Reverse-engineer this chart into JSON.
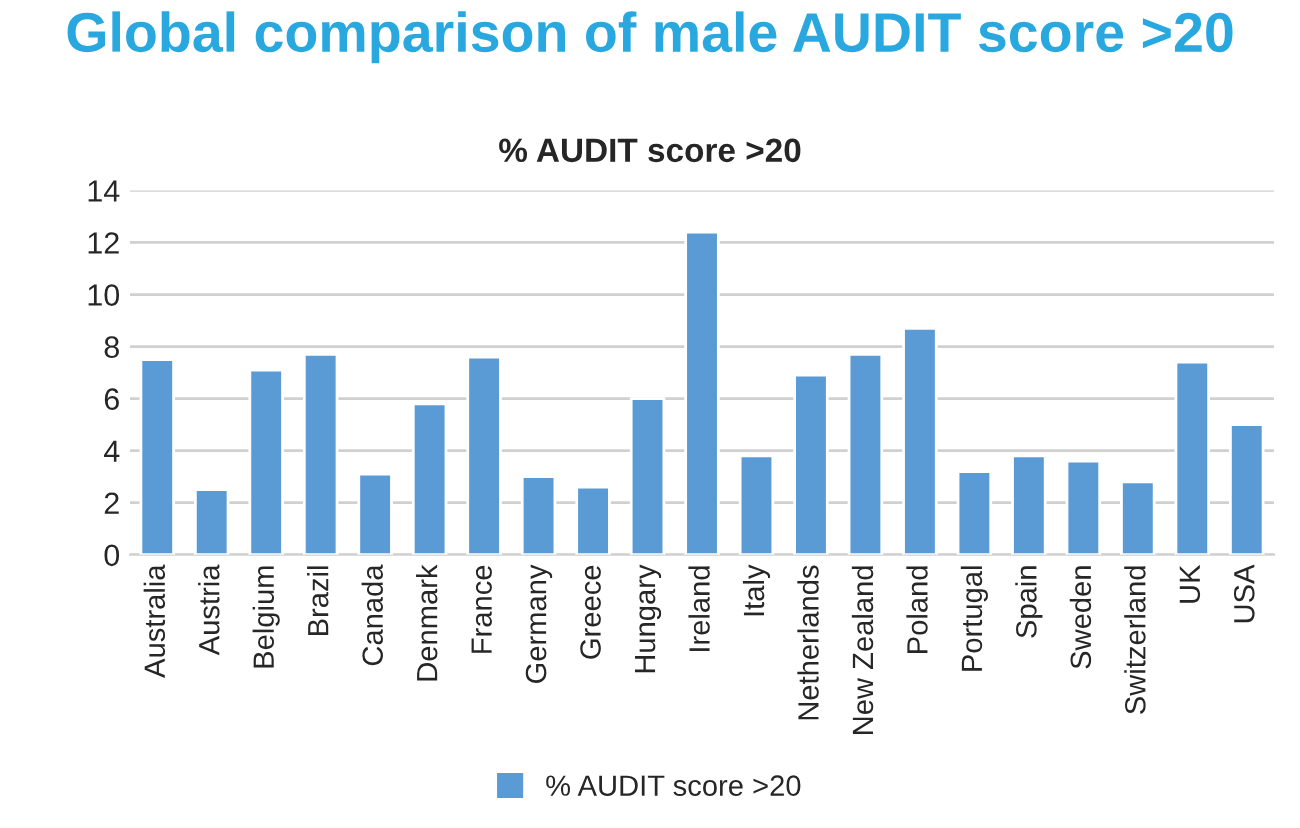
{
  "chart_data": {
    "type": "bar",
    "title": "Global comparison of male AUDIT score >20",
    "subtitle": "% AUDIT score >20",
    "categories": [
      "Australia",
      "Austria",
      "Belgium",
      "Brazil",
      "Canada",
      "Denmark",
      "France",
      "Germany",
      "Greece",
      "Hungary",
      "Ireland",
      "Italy",
      "Netherlands",
      "New Zealand",
      "Poland",
      "Portugal",
      "Spain",
      "Sweden",
      "Switzerland",
      "UK",
      "USA"
    ],
    "series": [
      {
        "name": "% AUDIT score >20",
        "color": "#5b9bd5",
        "values": [
          7.5,
          2.5,
          7.1,
          7.7,
          3.1,
          5.8,
          7.6,
          3.0,
          2.6,
          6.0,
          12.4,
          3.8,
          6.9,
          7.7,
          8.7,
          3.2,
          3.8,
          3.6,
          2.8,
          7.4,
          5.0
        ]
      }
    ],
    "ylim": [
      0,
      14
    ],
    "yticks": [
      0,
      2,
      4,
      6,
      8,
      10,
      12,
      14
    ],
    "grid": "y",
    "legend": "bottom"
  }
}
